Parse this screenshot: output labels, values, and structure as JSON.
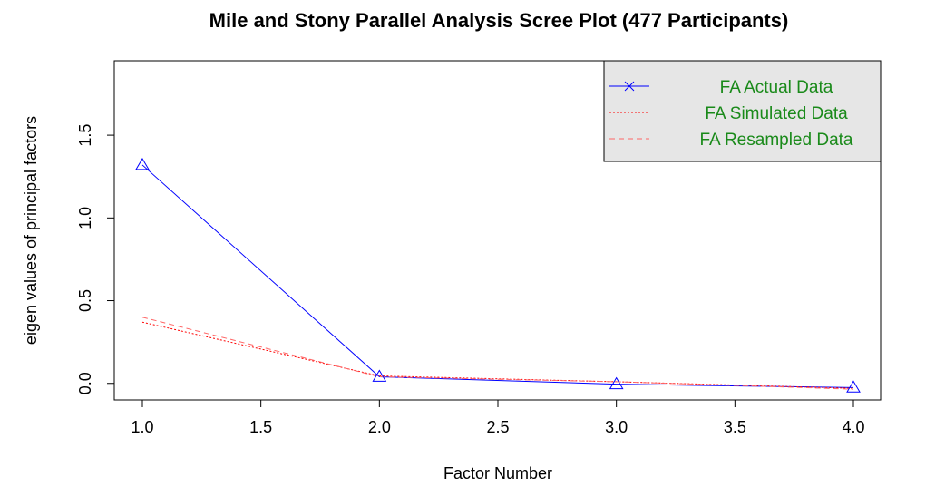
{
  "chart_data": {
    "type": "line",
    "title": "Mile and Stony Parallel Analysis Scree Plot (477 Participants)",
    "xlabel": "Factor Number",
    "ylabel": "eigen values of principal factors",
    "xlim": [
      1.0,
      4.0
    ],
    "ylim": [
      -0.1,
      1.95
    ],
    "x_ticks": [
      "1.0",
      "1.5",
      "2.0",
      "2.5",
      "3.0",
      "3.5",
      "4.0"
    ],
    "y_ticks": [
      "0.0",
      "0.5",
      "1.0",
      "1.5"
    ],
    "x": [
      1,
      2,
      3,
      4
    ],
    "series": [
      {
        "name": "FA  Actual Data",
        "values": [
          1.32,
          0.04,
          -0.005,
          -0.025
        ],
        "color": "#0000ff",
        "line": "solid",
        "marker": "triangle"
      },
      {
        "name": "FA  Simulated Data",
        "values": [
          0.37,
          0.045,
          0.01,
          -0.03
        ],
        "color": "#ff0000",
        "line": "dotted"
      },
      {
        "name": "FA  Resampled Data",
        "values": [
          0.4,
          0.04,
          0.01,
          -0.035
        ],
        "color": "#ff6666",
        "line": "dashed"
      }
    ],
    "legend": {
      "position": "top-right",
      "background": "#e6e6e6",
      "entries": [
        "FA  Actual Data",
        "FA  Simulated Data",
        "FA  Resampled Data"
      ]
    },
    "grid": false
  }
}
